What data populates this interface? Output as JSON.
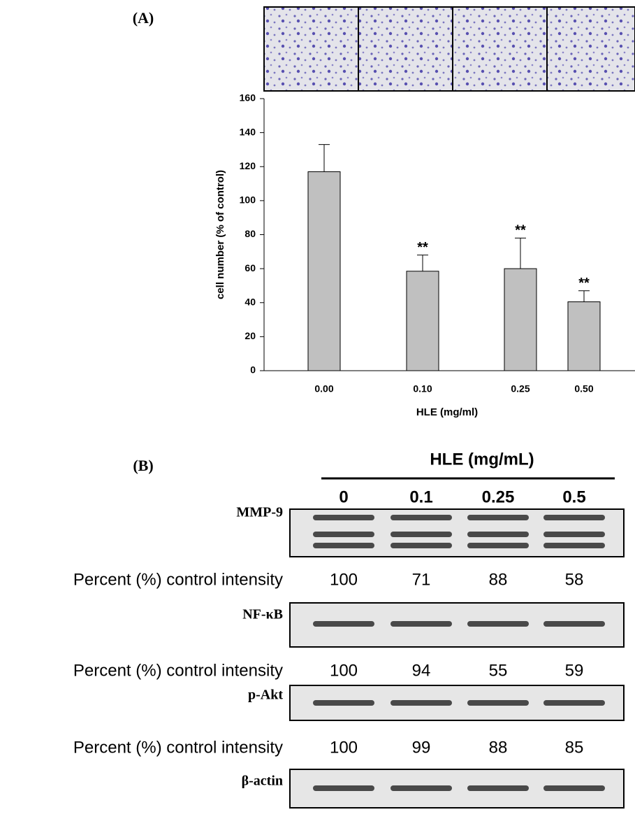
{
  "panel_a_label": "(A)",
  "chart_data": {
    "type": "bar",
    "categories": [
      "0.00",
      "0.10",
      "0.25",
      "0.50"
    ],
    "values": [
      117,
      58.5,
      60,
      40.5
    ],
    "errors": [
      16,
      9.5,
      18,
      6.5
    ],
    "significance": [
      null,
      "**",
      "**",
      "**"
    ],
    "color": "#c0c0c0",
    "xlabel": "HLE (mg/ml)",
    "ylabel": "cell number (% of control)",
    "ylim": [
      0,
      160
    ],
    "yticks": [
      0,
      20,
      40,
      60,
      80,
      100,
      120,
      140,
      160
    ]
  },
  "panel_b": {
    "label": "(B)",
    "title": "HLE (mg/mL)",
    "lanes": [
      "0",
      "0.1",
      "0.25",
      "0.5"
    ],
    "blots": [
      {
        "name": "MMP-9",
        "intensity_label": "Percent (%) control intensity",
        "intensities": [
          100,
          71,
          88,
          58
        ]
      },
      {
        "name": "NF-κB",
        "intensity_label": "Percent (%) control intensity",
        "intensities": [
          100,
          94,
          55,
          59
        ]
      },
      {
        "name": "p-Akt",
        "intensity_label": "Percent (%) control intensity",
        "intensities": [
          100,
          99,
          88,
          85
        ]
      },
      {
        "name": "β-actin"
      }
    ]
  }
}
